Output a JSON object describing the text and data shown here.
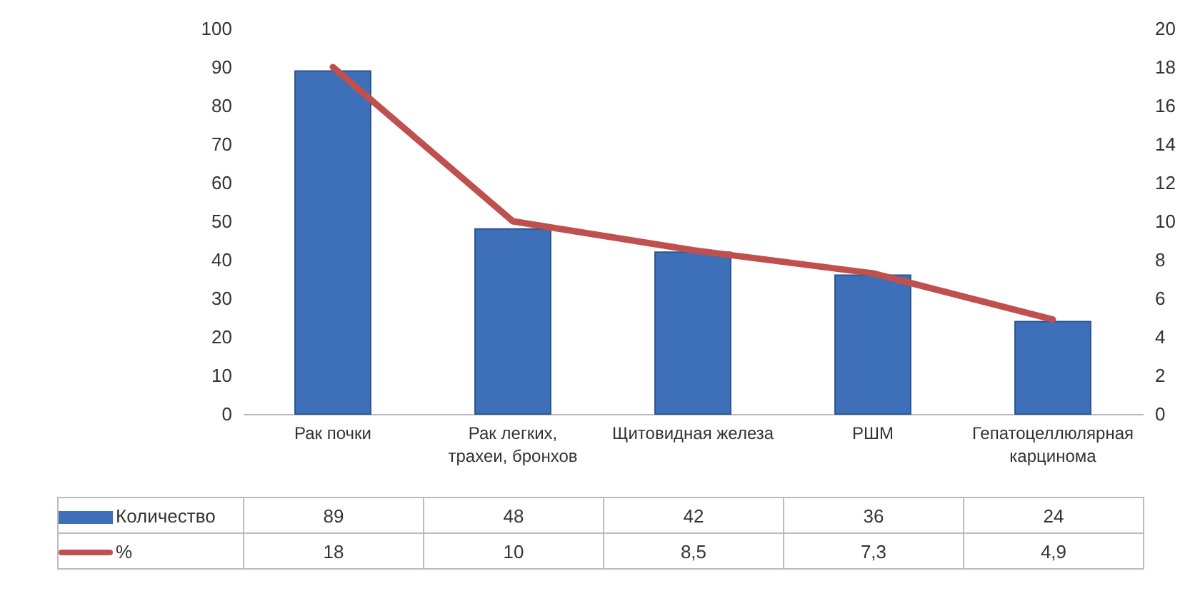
{
  "chart_data": {
    "type": "bar",
    "categories": [
      "Рак почки",
      "Рак легких, трахеи, бронхов",
      "Щитовидная железа",
      "РШМ",
      "Гепатоцеллюлярная карцинома"
    ],
    "series": [
      {
        "name": "Количество",
        "color": "#3d70b8",
        "values": [
          89,
          48,
          42,
          36,
          24
        ],
        "value_labels": [
          "89",
          "48",
          "42",
          "36",
          "24"
        ]
      },
      {
        "name": "%",
        "type": "line",
        "axis": "y2",
        "color": "#c0504d",
        "values": [
          18,
          10,
          8.5,
          7.3,
          4.9
        ],
        "value_labels": [
          "18",
          "10",
          "8,5",
          "7,3",
          "4,9"
        ]
      }
    ],
    "ylim": [
      0,
      100
    ],
    "yticks": [
      0,
      10,
      20,
      30,
      40,
      50,
      60,
      70,
      80,
      90,
      100
    ],
    "y2lim": [
      0,
      20
    ],
    "y2ticks": [
      0,
      2,
      4,
      6,
      8,
      10,
      12,
      14,
      16,
      18,
      20
    ],
    "legend": "bottom",
    "grid": false,
    "line_style": "solid",
    "marker": "none"
  }
}
